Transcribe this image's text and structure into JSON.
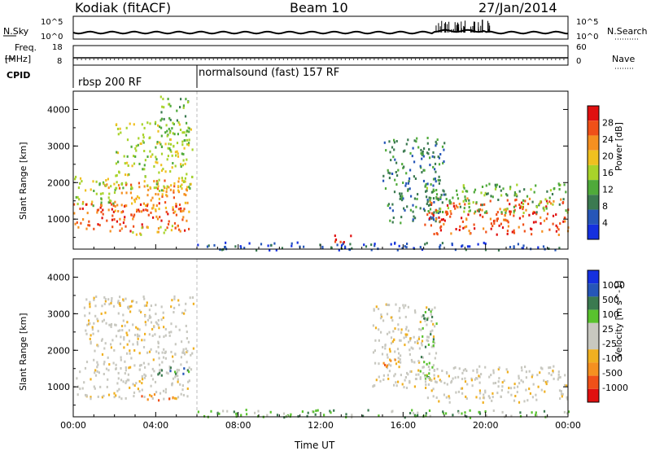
{
  "header": {
    "title": "Kodiak (fitACF)",
    "beam": "Beam 10",
    "date": "27/Jan/2014"
  },
  "params": {
    "nsky_label": "N.Sky",
    "nsky_ticks": [
      "10^5",
      "10^0"
    ],
    "nsearch_label": "N.Search",
    "nsearch_ticks": [
      "10^5",
      "10^0"
    ],
    "freq_label_1": "Freq.",
    "freq_label_2": "[MHz]",
    "freq_ticks": [
      "18",
      "8"
    ],
    "nave_label": "Nave",
    "nave_ticks": [
      "60",
      "0"
    ],
    "cpid_label": "CPID",
    "cpid_segments": [
      {
        "name": "rbsp 200 RF",
        "start_hour": 0,
        "end_hour": 6
      },
      {
        "name": "normalsound (fast) 157 RF",
        "start_hour": 6,
        "end_hour": 24
      }
    ]
  },
  "colors": {
    "power_scale": [
      "#1530e0",
      "#2656b8",
      "#3b7a50",
      "#4faa3a",
      "#a8d32a",
      "#f0c020",
      "#f59020",
      "#f05018",
      "#e01010"
    ],
    "velocity_scale": [
      "#e01010",
      "#f05018",
      "#f59020",
      "#f0b020",
      "#c8c8c0",
      "#c8c8c0",
      "#59c22e",
      "#3b7a50",
      "#2656b8",
      "#1530e0"
    ],
    "gray": "#c8c8c0"
  },
  "chart_data": [
    {
      "type": "heatmap",
      "name": "power",
      "ylabel": "Slant Range [km]",
      "yticks": [
        1000,
        2000,
        3000,
        4000
      ],
      "ylim": [
        180,
        4500
      ],
      "xlim": [
        0,
        24
      ],
      "colorbar_label": "Power [dB]",
      "colorbar_ticks": [
        "28",
        "24",
        "20",
        "16",
        "12",
        "8",
        "4"
      ],
      "bands": [
        {
          "t0": 0.0,
          "t1": 5.6,
          "r0": 700,
          "r1": 1500,
          "level": 7
        },
        {
          "t0": 1.5,
          "t1": 5.6,
          "r0": 1200,
          "r1": 2100,
          "level": 6
        },
        {
          "t0": 0.0,
          "t1": 2.0,
          "r0": 1400,
          "r1": 2200,
          "level": 4
        },
        {
          "t0": 2.0,
          "t1": 5.8,
          "r0": 1800,
          "r1": 3700,
          "level": 4
        },
        {
          "t0": 4.2,
          "t1": 5.6,
          "r0": 3300,
          "r1": 4400,
          "level": 3
        },
        {
          "t0": 2.8,
          "t1": 4.8,
          "r0": 600,
          "r1": 900,
          "level": 5
        },
        {
          "t0": 12.5,
          "t1": 13.5,
          "r0": 350,
          "r1": 650,
          "level": 8
        },
        {
          "t0": 15.0,
          "t1": 18.0,
          "r0": 900,
          "r1": 3300,
          "level": 2
        },
        {
          "t0": 17.0,
          "t1": 24.0,
          "r0": 600,
          "r1": 1600,
          "level": 7
        },
        {
          "t0": 17.0,
          "t1": 24.0,
          "r0": 1200,
          "r1": 2000,
          "level": 3
        },
        {
          "t0": 6.0,
          "t1": 24.0,
          "r0": 180,
          "r1": 400,
          "level": 1
        }
      ]
    },
    {
      "type": "heatmap",
      "name": "velocity",
      "ylabel": "Slant Range [km]",
      "yticks": [
        1000,
        2000,
        3000,
        4000
      ],
      "ylim": [
        180,
        4500
      ],
      "xlim": [
        0,
        24
      ],
      "xlabel": "Time UT",
      "xticks": [
        "00:00",
        "04:00",
        "08:00",
        "12:00",
        "16:00",
        "20:00",
        "00:00"
      ],
      "colorbar_label": "Velocity [m s^-1]",
      "colorbar_ticks": [
        "1000",
        "500",
        "100",
        "25",
        "-25",
        "-100",
        "-500",
        "-1000"
      ],
      "bands": [
        {
          "t0": 0.0,
          "t1": 5.6,
          "r0": 700,
          "r1": 1500,
          "level": 4
        },
        {
          "t0": 0.5,
          "t1": 5.8,
          "r0": 1500,
          "r1": 3500,
          "level": 4
        },
        {
          "t0": 4.0,
          "t1": 5.6,
          "r0": 1300,
          "r1": 1600,
          "level": 7
        },
        {
          "t0": 3.0,
          "t1": 4.8,
          "r0": 650,
          "r1": 850,
          "level": 2
        },
        {
          "t0": 14.5,
          "t1": 17.5,
          "r0": 1000,
          "r1": 3300,
          "level": 4
        },
        {
          "t0": 16.8,
          "t1": 17.6,
          "r0": 1200,
          "r1": 3200,
          "level": 6
        },
        {
          "t0": 17.0,
          "t1": 24.0,
          "r0": 600,
          "r1": 1600,
          "level": 4
        },
        {
          "t0": 15.0,
          "t1": 16.0,
          "r0": 1500,
          "r1": 1800,
          "level": 2
        },
        {
          "t0": 6.0,
          "t1": 24.0,
          "r0": 180,
          "r1": 400,
          "level": 6
        }
      ]
    }
  ]
}
